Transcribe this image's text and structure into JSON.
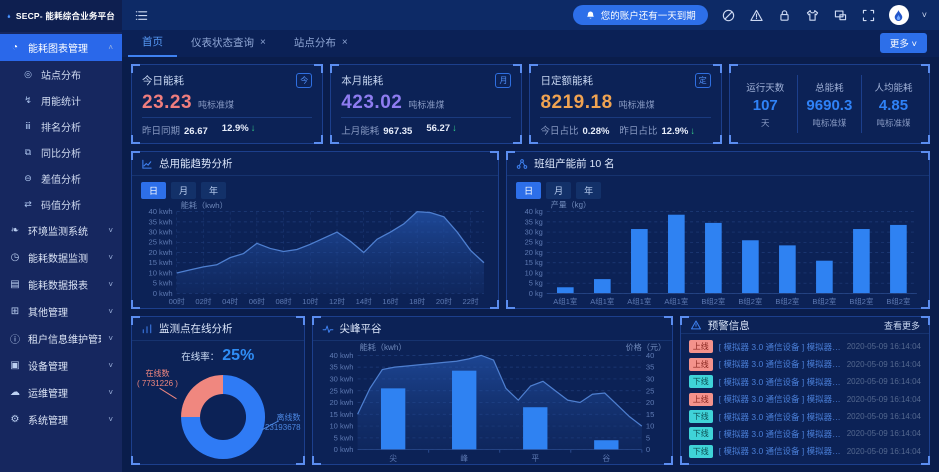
{
  "app": {
    "logo_title": "SECP- 能耗综合业务平台"
  },
  "header": {
    "notice": "您的账户还有一天到期",
    "icons": [
      "ban-icon",
      "warning-icon",
      "lock-icon",
      "theme-icon",
      "multi-window-icon",
      "fullscreen-icon"
    ]
  },
  "tabbar": {
    "tabs": [
      {
        "label": "首页",
        "active": true,
        "closable": false
      },
      {
        "label": "仪表状态查询",
        "active": false,
        "closable": true
      },
      {
        "label": "站点分布",
        "active": false,
        "closable": true
      }
    ],
    "more_label": "更多 ˅"
  },
  "sidebar": {
    "items": [
      {
        "label": "能耗图表管理",
        "icon": "pie-chart-icon",
        "glyph": "◔",
        "active": true,
        "expanded": true,
        "children": [
          {
            "label": "站点分布",
            "icon": "site-distribution-icon",
            "glyph": "◎"
          },
          {
            "label": "用能统计",
            "icon": "energy-stats-icon",
            "glyph": "↯"
          },
          {
            "label": "排名分析",
            "icon": "ranking-bars-icon",
            "glyph": "ⅲ"
          },
          {
            "label": "同比分析",
            "icon": "compare-squares-icon",
            "glyph": "⧉"
          },
          {
            "label": "差值分析",
            "icon": "difference-icon",
            "glyph": "⊖"
          },
          {
            "label": "码值分析",
            "icon": "code-value-icon",
            "glyph": "⇄"
          }
        ]
      },
      {
        "label": "环境监测系统",
        "icon": "environment-leaf-icon",
        "glyph": "❧"
      },
      {
        "label": "能耗数据监测",
        "icon": "data-monitor-icon",
        "glyph": "◷"
      },
      {
        "label": "能耗数据报表",
        "icon": "report-icon",
        "glyph": "▤"
      },
      {
        "label": "其他管理",
        "icon": "other-mgmt-icon",
        "glyph": "⊞"
      },
      {
        "label": "租户信息维护管理",
        "icon": "tenant-info-icon",
        "glyph": "ⓘ"
      },
      {
        "label": "设备管理",
        "icon": "device-icon",
        "glyph": "▣"
      },
      {
        "label": "运维管理",
        "icon": "ops-cloud-icon",
        "glyph": "☁"
      },
      {
        "label": "系统管理",
        "icon": "system-gear-icon",
        "glyph": "⚙"
      }
    ]
  },
  "cards": [
    {
      "title": "今日能耗",
      "value": "23.23",
      "unit": "吨标准煤",
      "value_color": "#ef7d7d",
      "icon_char": "今",
      "footer": [
        {
          "label": "昨日同期",
          "value": "26.67"
        },
        {
          "label": "",
          "value": "12.9%",
          "arrow": "↓"
        }
      ]
    },
    {
      "title": "本月能耗",
      "value": "423.02",
      "unit": "吨标准煤",
      "value_color": "#8e7cf0",
      "icon_char": "月",
      "footer": [
        {
          "label": "上月能耗",
          "value": "967.35"
        },
        {
          "label": "",
          "value": "56.27",
          "arrow": "↓"
        }
      ]
    },
    {
      "title": "日定额能耗",
      "value": "8219.18",
      "unit": "吨标准煤",
      "value_color": "#f0a351",
      "icon_char": "定",
      "footer": [
        {
          "label": "今日占比",
          "value": "0.28%"
        },
        {
          "label": "昨日占比",
          "value": "12.9%",
          "arrow": "↓"
        }
      ]
    }
  ],
  "summary": [
    {
      "label": "运行天数",
      "value": "107",
      "unit": "天"
    },
    {
      "label": "总能耗",
      "value": "9690.3",
      "unit": "吨标准煤"
    },
    {
      "label": "人均能耗",
      "value": "4.85",
      "unit": "吨标准煤"
    }
  ],
  "chart_data": [
    {
      "type": "area",
      "title": "总用能趋势分析",
      "tabs": [
        "日",
        "月",
        "年"
      ],
      "active_tab": "日",
      "ylabel": "能耗（kwh）",
      "yunit": "kwh",
      "ylim": [
        0,
        40
      ],
      "ystep": 5,
      "x_ticks": [
        "00时",
        "02时",
        "04时",
        "06时",
        "08时",
        "10时",
        "12时",
        "14时",
        "16时",
        "18时",
        "20时",
        "22时"
      ],
      "values": [
        10,
        11.5,
        13,
        14,
        17.5,
        19.5,
        24.5,
        22,
        20.5,
        21.5,
        24,
        27,
        30,
        25.5,
        20,
        26.5,
        30,
        34,
        40,
        39.5,
        37.5,
        30,
        21,
        15
      ]
    },
    {
      "type": "bar",
      "title": "班组产能前 10 名",
      "tabs": [
        "日",
        "月",
        "年"
      ],
      "active_tab": "日",
      "ylabel": "产量（kg）",
      "yunit": "kg",
      "ylim": [
        0,
        40
      ],
      "ystep": 5,
      "categories": [
        "A组1室",
        "A组1室",
        "A组1室",
        "A组1室",
        "B组2室",
        "B组2室",
        "B组2室",
        "B组2室",
        "B组2室",
        "B组2室"
      ],
      "values": [
        3,
        7,
        31.5,
        38.5,
        34.5,
        26,
        23.5,
        16,
        31.5,
        33.5
      ]
    },
    {
      "type": "pie",
      "title": "监测点在线分析",
      "rate_label": "在线率：",
      "rate_value": "25%",
      "slices": [
        {
          "label": "在线数",
          "sub": "( 7731226 )",
          "value": 25,
          "color": "#f0877f"
        },
        {
          "label": "离线数",
          "sub": "23193678",
          "value": 75,
          "color": "#2f7bf5"
        }
      ]
    },
    {
      "type": "mixed",
      "title": "尖峰平谷",
      "ylabel_left": "能耗（kwh）",
      "ylabel_right": "价格（元）",
      "yunit": "kwh",
      "ylim": [
        0,
        40
      ],
      "ystep": 5,
      "categories": [
        "尖",
        "峰",
        "平",
        "谷"
      ],
      "bar_values": [
        26,
        33.5,
        18,
        4
      ],
      "line_values": [
        15,
        26,
        34,
        35,
        35.5,
        36,
        36.5,
        37,
        37.5,
        38.5,
        40,
        38,
        26,
        21,
        27,
        29,
        25,
        21,
        20,
        23.5,
        24,
        19,
        14,
        10
      ]
    }
  ],
  "alerts": {
    "title": "预警信息",
    "more_label": "查看更多",
    "rows": [
      {
        "status": "上线",
        "text": "[ 模拟器 3.0 通信设备 ] 模拟器 3.0...",
        "time": "2020-05-09 16:14:04"
      },
      {
        "status": "上线",
        "text": "[ 模拟器 3.0 通信设备 ] 模拟器 3.0...",
        "time": "2020-05-09 16:14:04"
      },
      {
        "status": "下线",
        "text": "[ 模拟器 3.0 通信设备 ] 模拟器 3.0...",
        "time": "2020-05-09 16:14:04"
      },
      {
        "status": "上线",
        "text": "[ 模拟器 3.0 通信设备 ] 模拟器 3.0...",
        "time": "2020-05-09 16:14:04"
      },
      {
        "status": "下线",
        "text": "[ 模拟器 3.0 通信设备 ] 模拟器 3.0...",
        "time": "2020-05-09 16:14:04"
      },
      {
        "status": "下线",
        "text": "[ 模拟器 3.0 通信设备 ] 模拟器 3.0...",
        "time": "2020-05-09 16:14:04"
      },
      {
        "status": "下线",
        "text": "[ 模拟器 3.0 通信设备 ] 模拟器 3.0...",
        "time": "2020-05-09 16:14:04"
      }
    ]
  },
  "colors": {
    "accent_blue": "#2f82f2",
    "online_pink": "#f0877f",
    "offline_cyan": "#3fd3d8",
    "panel_bg": "#0c2256",
    "sidebar_active": "#2a68ea"
  }
}
